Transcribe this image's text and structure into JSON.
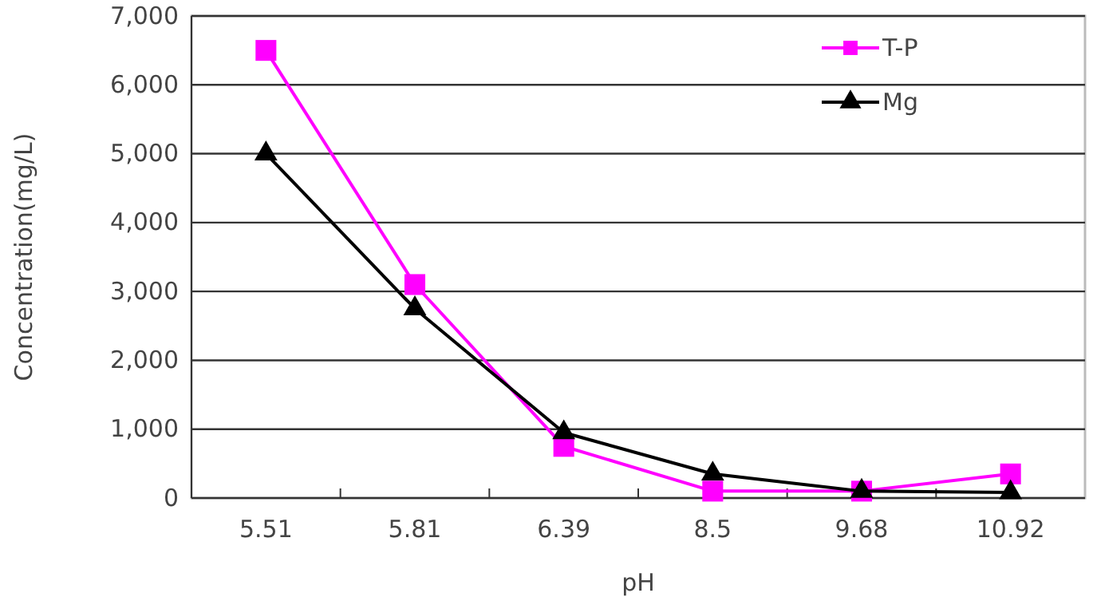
{
  "chart_data": {
    "type": "line",
    "xlabel": "pH",
    "ylabel": "Concentration(mg/L)",
    "categories": [
      "5.51",
      "5.81",
      "6.39",
      "8.5",
      "9.68",
      "10.92"
    ],
    "series": [
      {
        "name": "T-P",
        "color": "#ff00ff",
        "marker": "square",
        "values": [
          6500,
          3100,
          750,
          100,
          100,
          350
        ]
      },
      {
        "name": "Mg",
        "color": "#000000",
        "marker": "triangle",
        "values": [
          5000,
          2750,
          950,
          350,
          100,
          80
        ]
      }
    ],
    "ylim": [
      0,
      7000
    ],
    "yticks": [
      {
        "value": 0,
        "label": "0"
      },
      {
        "value": 1000,
        "label": "1,000"
      },
      {
        "value": 2000,
        "label": "2,000"
      },
      {
        "value": 3000,
        "label": "3,000"
      },
      {
        "value": 4000,
        "label": "4,000"
      },
      {
        "value": 5000,
        "label": "5,000"
      },
      {
        "value": 6000,
        "label": "6,000"
      },
      {
        "value": 7000,
        "label": "7,000"
      }
    ],
    "grid": "y",
    "legend": "top right",
    "line_style": "solid"
  }
}
